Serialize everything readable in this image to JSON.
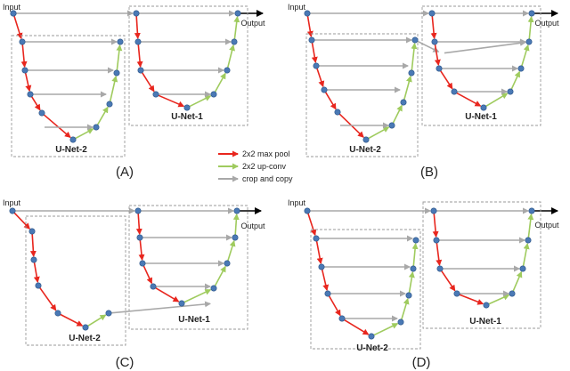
{
  "colors": {
    "pool": "#e8261e",
    "upconv": "#9fcb5e",
    "copy": "#a8a8a8",
    "node": "#4a79b5",
    "box": "#9a9a9a"
  },
  "panels": [
    {
      "label": "(A)",
      "input": "Input",
      "output": "Output",
      "net_left": "U-Net-2",
      "net_right": "U-Net-1"
    },
    {
      "label": "(B)",
      "input": "Input",
      "output": "Output",
      "net_left": "U-Net-2",
      "net_right": "U-Net-1"
    },
    {
      "label": "(C)",
      "input": "Input",
      "output": "Output",
      "net_left": "U-Net-2",
      "net_right": "U-Net-1"
    },
    {
      "label": "(D)",
      "input": "Input",
      "output": "Output",
      "net_left": "U-Net-2",
      "net_right": "U-Net-1"
    }
  ],
  "legend": {
    "pool": "2x2 max pool",
    "upconv": "2x2 up-conv",
    "copy": "crop and copy"
  }
}
